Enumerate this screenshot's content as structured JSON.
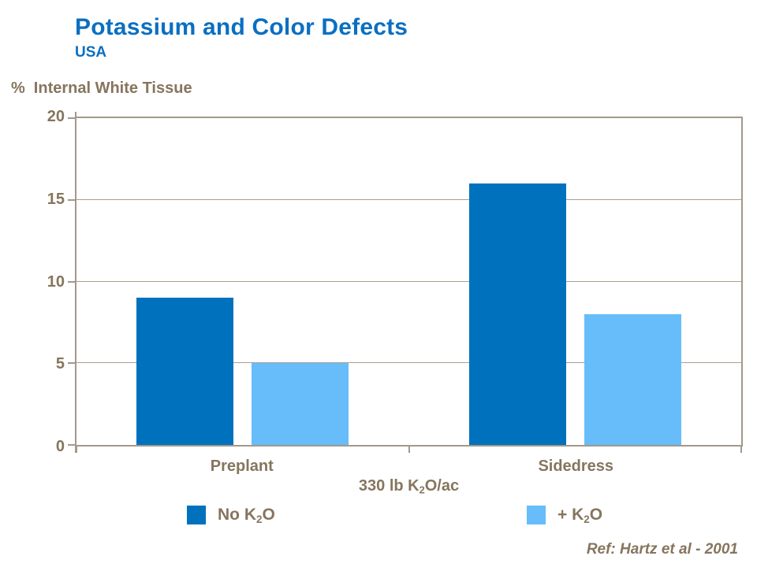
{
  "header": {
    "title": "Potassium and Color Defects",
    "subtitle": "USA"
  },
  "axis_title": {
    "prefix": "%",
    "text": "Internal White Tissue"
  },
  "chart_data": {
    "type": "bar",
    "title": "Potassium and Color Defects",
    "subtitle": "USA",
    "ylabel": "% Internal White Tissue",
    "xlabel": "330 lb K2O/ac",
    "categories": [
      "Preplant",
      "Sidedress"
    ],
    "series": [
      {
        "name": "No K2O",
        "label_pre": "No K",
        "label_sub": "2",
        "label_post": "O",
        "color": "#0071BD",
        "values": [
          9,
          16
        ]
      },
      {
        "name": "+ K2O",
        "label_pre": "+ K",
        "label_sub": "2",
        "label_post": "O",
        "color": "#66BDFA",
        "values": [
          5,
          8
        ]
      }
    ],
    "ylim": [
      0,
      20
    ],
    "yticks": [
      0,
      5,
      10,
      15,
      20
    ],
    "gridlines": [
      5,
      10,
      15
    ],
    "grid": true,
    "legend_position": "bottom",
    "annotations": []
  },
  "xlabel_parts": {
    "pre": "330 lb K",
    "sub": "2",
    "post": "O/ac"
  },
  "footer": {
    "reference": "Ref: Hartz et al - 2001"
  },
  "colors": {
    "title_blue": "#0A6FC2",
    "text_brown": "#86755E",
    "axis_line": "#A5988A",
    "series_dark_blue": "#0071BD",
    "series_light_blue": "#66BDFA"
  }
}
